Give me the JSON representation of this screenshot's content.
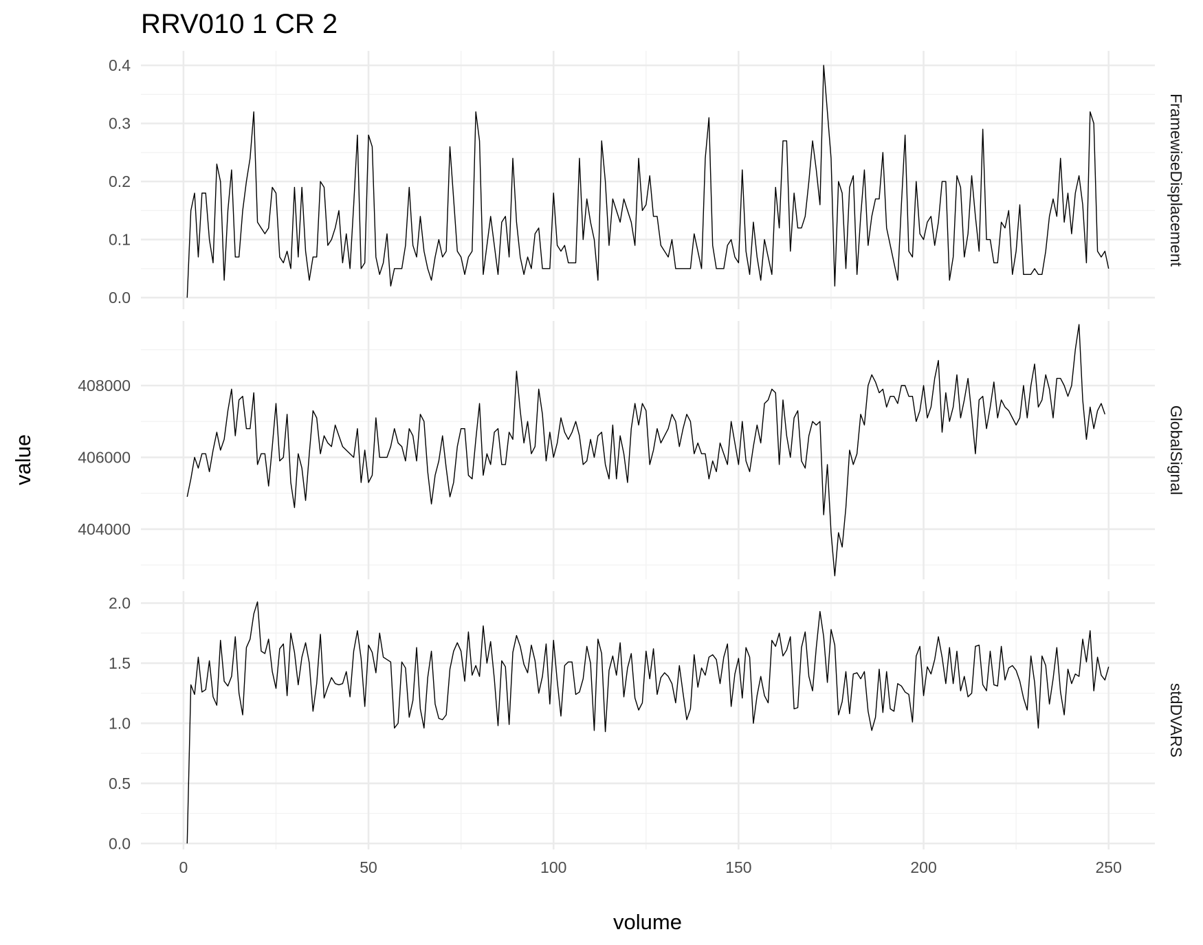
{
  "chart_data": {
    "type": "line",
    "title": "RRV010  1  CR  2",
    "xlabel": "volume",
    "ylabel": "value",
    "xlim": [
      -11.5,
      262.5
    ],
    "xticks": [
      0,
      50,
      100,
      150,
      200,
      250
    ],
    "xtick_labels": [
      "0",
      "50",
      "100",
      "150",
      "200",
      "250"
    ],
    "grid": true,
    "legend": "none",
    "panels": [
      {
        "name": "FramewiseDisplacement",
        "ylim": [
          -0.02,
          0.425
        ],
        "yticks": [
          0.0,
          0.1,
          0.2,
          0.3,
          0.4
        ],
        "ytick_labels": [
          "0.0",
          "0.1",
          "0.2",
          "0.3",
          "0.4"
        ],
        "x_start": 1,
        "values": [
          0.0,
          0.15,
          0.18,
          0.07,
          0.18,
          0.18,
          0.1,
          0.06,
          0.23,
          0.2,
          0.03,
          0.15,
          0.22,
          0.07,
          0.07,
          0.15,
          0.2,
          0.24,
          0.32,
          0.13,
          0.12,
          0.11,
          0.12,
          0.19,
          0.18,
          0.07,
          0.06,
          0.08,
          0.05,
          0.19,
          0.07,
          0.19,
          0.08,
          0.03,
          0.07,
          0.07,
          0.2,
          0.19,
          0.09,
          0.1,
          0.12,
          0.15,
          0.06,
          0.11,
          0.05,
          0.16,
          0.28,
          0.05,
          0.06,
          0.28,
          0.26,
          0.07,
          0.04,
          0.06,
          0.11,
          0.02,
          0.05,
          0.05,
          0.05,
          0.09,
          0.19,
          0.09,
          0.07,
          0.14,
          0.08,
          0.05,
          0.03,
          0.07,
          0.1,
          0.07,
          0.08,
          0.26,
          0.17,
          0.08,
          0.07,
          0.04,
          0.07,
          0.08,
          0.32,
          0.27,
          0.04,
          0.09,
          0.14,
          0.09,
          0.04,
          0.13,
          0.14,
          0.07,
          0.24,
          0.13,
          0.07,
          0.04,
          0.07,
          0.05,
          0.11,
          0.12,
          0.05,
          0.05,
          0.05,
          0.18,
          0.09,
          0.08,
          0.09,
          0.06,
          0.06,
          0.06,
          0.24,
          0.1,
          0.17,
          0.13,
          0.1,
          0.03,
          0.27,
          0.2,
          0.09,
          0.17,
          0.15,
          0.13,
          0.17,
          0.15,
          0.13,
          0.09,
          0.24,
          0.15,
          0.16,
          0.21,
          0.14,
          0.14,
          0.09,
          0.08,
          0.07,
          0.1,
          0.05,
          0.05,
          0.05,
          0.05,
          0.05,
          0.11,
          0.08,
          0.05,
          0.24,
          0.31,
          0.09,
          0.05,
          0.05,
          0.05,
          0.09,
          0.1,
          0.07,
          0.06,
          0.22,
          0.08,
          0.04,
          0.13,
          0.07,
          0.03,
          0.1,
          0.07,
          0.04,
          0.19,
          0.12,
          0.27,
          0.27,
          0.08,
          0.18,
          0.12,
          0.12,
          0.14,
          0.2,
          0.27,
          0.22,
          0.16,
          0.4,
          0.32,
          0.24,
          0.02,
          0.2,
          0.18,
          0.05,
          0.19,
          0.21,
          0.04,
          0.14,
          0.22,
          0.09,
          0.14,
          0.17,
          0.17,
          0.25,
          0.12,
          0.09,
          0.06,
          0.03,
          0.16,
          0.28,
          0.08,
          0.07,
          0.2,
          0.11,
          0.1,
          0.13,
          0.14,
          0.09,
          0.13,
          0.2,
          0.2,
          0.03,
          0.07,
          0.21,
          0.19,
          0.07,
          0.11,
          0.21,
          0.14,
          0.08,
          0.29,
          0.1,
          0.1,
          0.06,
          0.06,
          0.13,
          0.12,
          0.15,
          0.04,
          0.08,
          0.16,
          0.04,
          0.04,
          0.04,
          0.05,
          0.04,
          0.04,
          0.08,
          0.14,
          0.17,
          0.14,
          0.24,
          0.13,
          0.18,
          0.11,
          0.18,
          0.21,
          0.16,
          0.06,
          0.32,
          0.3,
          0.08,
          0.07,
          0.08,
          0.05
        ]
      },
      {
        "name": "GlobalSignal",
        "ylim": [
          402600,
          409800
        ],
        "yticks": [
          404000,
          406000,
          408000
        ],
        "ytick_labels": [
          "404000",
          "406000",
          "408000"
        ],
        "x_start": 1,
        "values": [
          404900,
          405400,
          406000,
          405700,
          406100,
          406100,
          405600,
          406200,
          406700,
          406200,
          406500,
          407300,
          407900,
          406600,
          407600,
          407700,
          406800,
          406800,
          407800,
          405800,
          406100,
          406100,
          405200,
          406300,
          407500,
          405900,
          406000,
          407200,
          405300,
          404600,
          406100,
          405700,
          404800,
          406100,
          407300,
          407100,
          406100,
          406600,
          406400,
          406300,
          406900,
          406600,
          406300,
          406200,
          406100,
          406000,
          406800,
          405300,
          406200,
          405300,
          405500,
          407100,
          406000,
          406000,
          406000,
          406300,
          406800,
          406400,
          406300,
          405900,
          406800,
          406600,
          405900,
          407200,
          407000,
          405600,
          404700,
          405500,
          405900,
          406600,
          405700,
          404900,
          405300,
          406300,
          406800,
          406800,
          405500,
          405400,
          406500,
          407500,
          405500,
          406100,
          405800,
          406700,
          406800,
          405800,
          405800,
          406700,
          406500,
          408400,
          407300,
          406400,
          407000,
          406100,
          406300,
          407900,
          407200,
          405900,
          406700,
          406000,
          406400,
          407100,
          406700,
          406500,
          406700,
          407000,
          406600,
          405800,
          405900,
          406500,
          406000,
          406600,
          406700,
          405800,
          405400,
          406900,
          405400,
          406600,
          406100,
          405300,
          406800,
          407500,
          406900,
          407500,
          407300,
          405800,
          406200,
          406800,
          406400,
          406600,
          406800,
          407200,
          407000,
          406300,
          406800,
          407200,
          407000,
          406100,
          406400,
          406100,
          406100,
          405400,
          405900,
          405600,
          406400,
          406100,
          405800,
          407000,
          406400,
          405800,
          407000,
          405900,
          405600,
          406300,
          406900,
          406400,
          407500,
          407600,
          407900,
          407800,
          405800,
          407600,
          406600,
          406000,
          407100,
          407300,
          405900,
          405700,
          406600,
          407000,
          406900,
          407000,
          404400,
          405800,
          403900,
          402700,
          403900,
          403500,
          404600,
          406200,
          405800,
          406100,
          407200,
          406900,
          408000,
          408300,
          408100,
          407800,
          407900,
          407400,
          407700,
          407700,
          407500,
          408000,
          408000,
          407700,
          407700,
          407000,
          407300,
          408000,
          407100,
          407400,
          408200,
          408700,
          406700,
          407800,
          407000,
          407400,
          408300,
          407100,
          407600,
          408200,
          407200,
          406100,
          407600,
          407700,
          406800,
          407400,
          408100,
          407100,
          407600,
          407400,
          407300,
          407100,
          406900,
          407100,
          408000,
          407100,
          408000,
          408600,
          407400,
          407600,
          408300,
          407900,
          407100,
          408200,
          408200,
          408000,
          407700,
          408000,
          409000,
          409700,
          407600,
          406500,
          407400,
          406800,
          407300,
          407500,
          407200
        ]
      },
      {
        "name": "stdDVARS",
        "ylim": [
          -0.05,
          2.1
        ],
        "yticks": [
          0.0,
          0.5,
          1.0,
          1.5,
          2.0
        ],
        "ytick_labels": [
          "0.0",
          "0.5",
          "1.0",
          "1.5",
          "2.0"
        ],
        "x_start": 1,
        "values": [
          0.0,
          1.32,
          1.24,
          1.55,
          1.26,
          1.28,
          1.52,
          1.22,
          1.15,
          1.69,
          1.35,
          1.31,
          1.39,
          1.72,
          1.25,
          1.07,
          1.63,
          1.7,
          1.91,
          2.01,
          1.6,
          1.58,
          1.7,
          1.43,
          1.29,
          1.62,
          1.66,
          1.23,
          1.75,
          1.59,
          1.32,
          1.55,
          1.67,
          1.5,
          1.1,
          1.33,
          1.74,
          1.21,
          1.3,
          1.38,
          1.33,
          1.32,
          1.33,
          1.43,
          1.22,
          1.6,
          1.77,
          1.54,
          1.14,
          1.65,
          1.59,
          1.42,
          1.75,
          1.55,
          1.53,
          1.51,
          0.96,
          1.0,
          1.51,
          1.46,
          1.05,
          1.19,
          1.63,
          1.12,
          0.96,
          1.38,
          1.6,
          1.16,
          1.04,
          1.03,
          1.07,
          1.45,
          1.6,
          1.67,
          1.6,
          1.35,
          1.76,
          1.4,
          1.48,
          1.39,
          1.81,
          1.5,
          1.68,
          1.37,
          0.98,
          1.52,
          1.47,
          0.99,
          1.59,
          1.73,
          1.64,
          1.49,
          1.42,
          1.65,
          1.52,
          1.25,
          1.39,
          1.66,
          1.16,
          1.69,
          1.35,
          1.06,
          1.48,
          1.51,
          1.51,
          1.24,
          1.26,
          1.37,
          1.64,
          1.5,
          0.94,
          1.7,
          1.58,
          0.93,
          1.44,
          1.56,
          1.4,
          1.67,
          1.22,
          1.46,
          1.58,
          1.21,
          1.11,
          1.17,
          1.6,
          1.37,
          1.62,
          1.24,
          1.38,
          1.42,
          1.39,
          1.33,
          1.17,
          1.48,
          1.25,
          1.03,
          1.12,
          1.57,
          1.3,
          1.46,
          1.4,
          1.55,
          1.57,
          1.53,
          1.33,
          1.55,
          1.66,
          1.14,
          1.41,
          1.54,
          1.21,
          1.63,
          1.55,
          1.0,
          1.23,
          1.39,
          1.23,
          1.17,
          1.69,
          1.64,
          1.75,
          1.56,
          1.61,
          1.72,
          1.12,
          1.13,
          1.63,
          1.76,
          1.39,
          1.27,
          1.63,
          1.93,
          1.72,
          1.34,
          1.78,
          1.65,
          1.07,
          1.18,
          1.43,
          1.08,
          1.41,
          1.42,
          1.37,
          1.43,
          1.1,
          0.94,
          1.05,
          1.45,
          1.09,
          1.43,
          1.12,
          1.1,
          1.33,
          1.31,
          1.26,
          1.24,
          1.01,
          1.56,
          1.64,
          1.23,
          1.47,
          1.41,
          1.53,
          1.72,
          1.55,
          1.33,
          1.63,
          1.33,
          1.6,
          1.27,
          1.39,
          1.22,
          1.25,
          1.64,
          1.65,
          1.32,
          1.27,
          1.6,
          1.32,
          1.31,
          1.64,
          1.36,
          1.46,
          1.48,
          1.44,
          1.35,
          1.21,
          1.11,
          1.56,
          1.34,
          0.96,
          1.56,
          1.48,
          1.16,
          1.37,
          1.63,
          1.26,
          1.07,
          1.45,
          1.33,
          1.41,
          1.39,
          1.7,
          1.51,
          1.77,
          1.27,
          1.55,
          1.4,
          1.36,
          1.47
        ]
      }
    ]
  }
}
